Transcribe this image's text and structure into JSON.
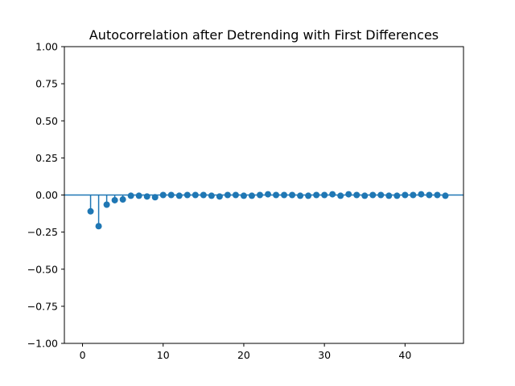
{
  "chart_data": {
    "type": "scatter",
    "title": "Autocorrelation after Detrending with First Differences",
    "xlabel": "",
    "ylabel": "",
    "xlim": [
      -2.25,
      47.25
    ],
    "ylim": [
      -1.0,
      1.0
    ],
    "xticks": [
      0,
      10,
      20,
      30,
      40
    ],
    "yticks": [
      -1.0,
      -0.75,
      -0.5,
      -0.25,
      0.0,
      0.25,
      0.5,
      0.75,
      1.0
    ],
    "xtick_labels": [
      "0",
      "10",
      "20",
      "30",
      "40"
    ],
    "ytick_labels": [
      "−1.00",
      "−0.75",
      "−0.50",
      "−0.25",
      "0.00",
      "0.25",
      "0.50",
      "0.75",
      "1.00"
    ],
    "grid": false,
    "legend": "none",
    "color": "#1f77b4",
    "series": [
      {
        "x": [
          1,
          2,
          3,
          4,
          5,
          6,
          7,
          8,
          9,
          10,
          11,
          12,
          13,
          14,
          15,
          16,
          17,
          18,
          19,
          20,
          21,
          22,
          23,
          24,
          25,
          26,
          27,
          28,
          29,
          30,
          31,
          32,
          33,
          34,
          35,
          36,
          37,
          38,
          39,
          40,
          41,
          42,
          43,
          44,
          45
        ],
        "values": [
          -0.11,
          -0.21,
          -0.065,
          -0.035,
          -0.03,
          -0.005,
          -0.005,
          -0.01,
          -0.015,
          0.0,
          0.0,
          -0.005,
          0.0,
          0.0,
          0.0,
          -0.005,
          -0.01,
          0.0,
          0.0,
          -0.005,
          -0.005,
          0.0,
          0.005,
          0.0,
          0.0,
          0.0,
          -0.005,
          -0.005,
          0.0,
          0.0,
          0.005,
          -0.005,
          0.005,
          0.0,
          -0.005,
          0.0,
          0.0,
          -0.005,
          -0.005,
          0.0,
          0.0,
          0.005,
          0.0,
          0.0,
          -0.005
        ]
      }
    ]
  }
}
